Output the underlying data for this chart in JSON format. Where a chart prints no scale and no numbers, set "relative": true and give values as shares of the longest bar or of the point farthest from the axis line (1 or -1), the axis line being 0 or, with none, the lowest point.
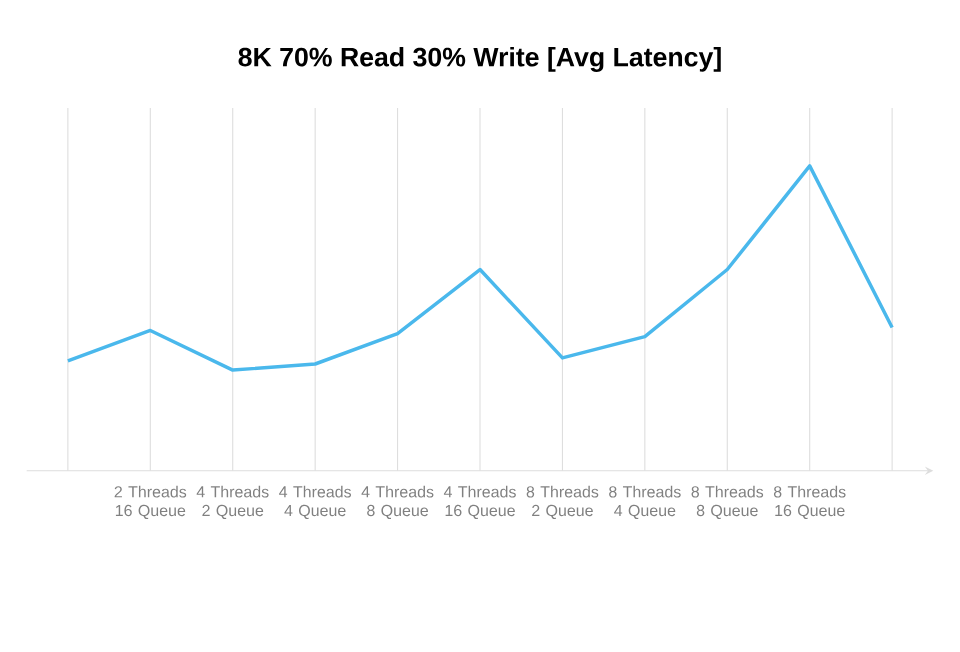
{
  "chart_data": {
    "type": "line",
    "title": "8K 70% Read 30% Write [Avg Latency]",
    "relative": true,
    "categories": [
      null,
      "2 Threads 16 Queue",
      "4 Threads 2 Queue",
      "4 Threads 4 Queue",
      "4 Threads 8 Queue",
      "4 Threads 16 Queue",
      "8 Threads 2 Queue",
      "8 Threads 4 Queue",
      "8 Threads 8 Queue",
      "8 Threads 16 Queue",
      null
    ],
    "series": [
      {
        "color": "#4ab8ec",
        "values": [
          0.36,
          0.46,
          0.33,
          0.35,
          0.45,
          0.66,
          0.37,
          0.44,
          0.66,
          1.0,
          0.47
        ]
      }
    ],
    "grid": true,
    "marker": "none",
    "line_style": "solid"
  }
}
